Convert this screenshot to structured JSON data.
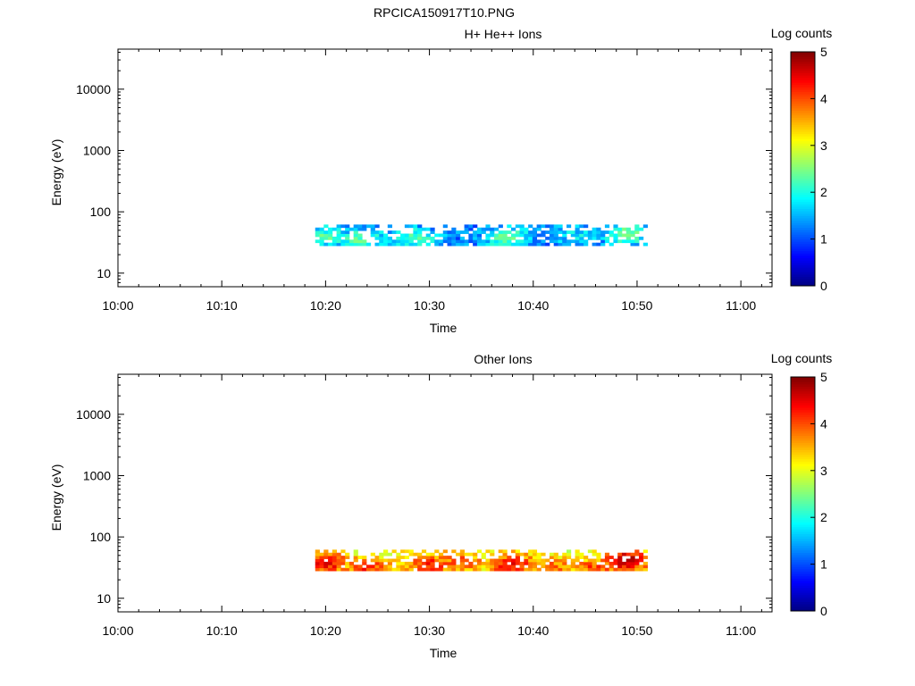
{
  "figure_title": "RPCICA150917T10.PNG",
  "chart_data": [
    {
      "type": "heatmap",
      "title": "H+ He++ Ions",
      "xlabel": "Time",
      "ylabel": "Energy (eV)",
      "x_range": [
        "10:00",
        "11:03"
      ],
      "x_ticks": [
        "10:00",
        "10:10",
        "10:20",
        "10:30",
        "10:40",
        "10:50",
        "11:00"
      ],
      "y_scale": "log",
      "y_range": [
        6,
        45000
      ],
      "y_ticks": [
        10,
        100,
        1000,
        10000
      ],
      "y_tick_labels": [
        "10",
        "100",
        "1000",
        "10000"
      ],
      "colorbar_label": "Log counts",
      "colorbar_range": [
        0,
        5
      ],
      "colorbar_ticks": [
        "0",
        "1",
        "2",
        "3",
        "4",
        "5"
      ],
      "colormap": "jet",
      "data_time_range": [
        "10:19",
        "10:51"
      ],
      "data_energy_range": [
        28,
        62
      ],
      "typical_value": 1.2,
      "peak_value": 2.5,
      "hotspots": [
        {
          "time": "10:20",
          "energy": 40,
          "value": 2.3
        },
        {
          "time": "10:23.5",
          "energy": 35,
          "value": 2.4
        },
        {
          "time": "10:28.5",
          "energy": 38,
          "value": 2.2
        },
        {
          "time": "10:37.5",
          "energy": 38,
          "value": 2.4
        },
        {
          "time": "10:44",
          "energy": 40,
          "value": 1.8
        },
        {
          "time": "10:49",
          "energy": 45,
          "value": 2.5
        }
      ],
      "background": "white"
    },
    {
      "type": "heatmap",
      "title": "Other Ions",
      "xlabel": "Time",
      "ylabel": "Energy (eV)",
      "x_range": [
        "10:00",
        "11:03"
      ],
      "x_ticks": [
        "10:00",
        "10:10",
        "10:20",
        "10:30",
        "10:40",
        "10:50",
        "11:00"
      ],
      "y_scale": "log",
      "y_range": [
        6,
        45000
      ],
      "y_ticks": [
        10,
        100,
        1000,
        10000
      ],
      "y_tick_labels": [
        "10",
        "100",
        "1000",
        "10000"
      ],
      "colorbar_label": "Log counts",
      "colorbar_range": [
        0,
        5
      ],
      "colorbar_ticks": [
        "0",
        "1",
        "2",
        "3",
        "4",
        "5"
      ],
      "colormap": "jet",
      "data_time_range": [
        "10:19",
        "10:51"
      ],
      "data_energy_range": [
        28,
        62
      ],
      "typical_value": 3.0,
      "peak_value": 4.8,
      "hotspots": [
        {
          "time": "10:20",
          "energy": 38,
          "value": 4.5
        },
        {
          "time": "10:24",
          "energy": 33,
          "value": 4.2
        },
        {
          "time": "10:30",
          "energy": 35,
          "value": 4.3
        },
        {
          "time": "10:33",
          "energy": 40,
          "value": 4.0
        },
        {
          "time": "10:38",
          "energy": 35,
          "value": 4.5
        },
        {
          "time": "10:42",
          "energy": 33,
          "value": 3.8
        },
        {
          "time": "10:46",
          "energy": 32,
          "value": 4.0
        },
        {
          "time": "10:49",
          "energy": 42,
          "value": 4.8
        }
      ],
      "background": "white"
    }
  ]
}
